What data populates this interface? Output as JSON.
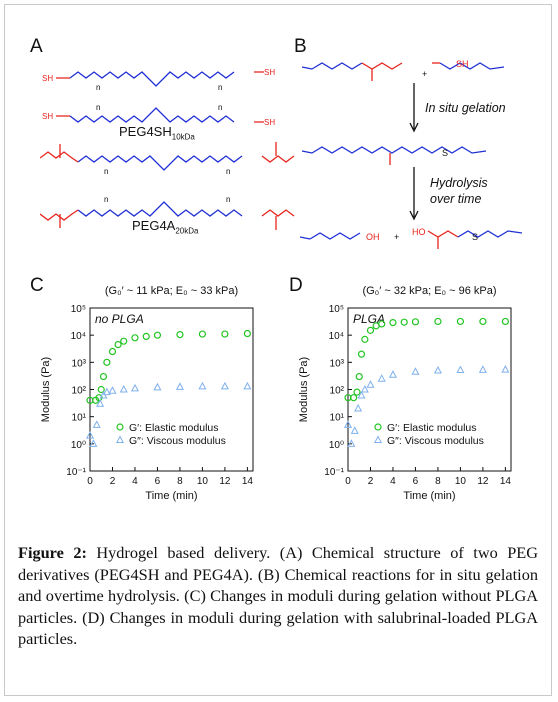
{
  "panels": {
    "a": "A",
    "b": "B",
    "c": "C",
    "d": "D"
  },
  "scheme_a": {
    "sh": "SH",
    "n": "n",
    "peg4sh_main": "PEG4SH",
    "peg4sh_sub": "10kDa",
    "peg4a_main": "PEG4A",
    "peg4a_sub": "20kDa"
  },
  "scheme_b": {
    "plus": "+",
    "step1": "In situ gelation",
    "step2_line1": "Hydrolysis",
    "step2_line2": "over time",
    "oh": "OH",
    "ho": "HO",
    "s": "S"
  },
  "colors": {
    "blue_structure": "#1f2fd6",
    "red_structure": "#e8231d",
    "elastic": "#22c422",
    "viscous": "#7fb0ee"
  },
  "chart_data": [
    {
      "type": "scatter",
      "panel": "C",
      "header": "(G₀′ ~ 11 kPa; E₀ ~ 33 kPa)",
      "inset_label": "no PLGA",
      "xlabel": "Time (min)",
      "ylabel": "Modulus (Pa)",
      "xlim": [
        0,
        14.5
      ],
      "xticks": [
        "0",
        "2",
        "4",
        "6",
        "8",
        "10",
        "12",
        "14"
      ],
      "ylim_log10": [
        -1,
        5
      ],
      "yscale": "log",
      "yticks": [
        "10⁻¹",
        "10⁰",
        "10¹",
        "10²",
        "10³",
        "10⁴",
        "10⁵"
      ],
      "legend_position": "bottom-right",
      "series": [
        {
          "name": "G′: Elastic modulus",
          "marker": "circle",
          "color": "#22c422",
          "x": [
            0,
            0.5,
            0.8,
            1.0,
            1.2,
            1.5,
            2.0,
            2.5,
            3.0,
            4.0,
            5.0,
            6.0,
            8.0,
            10.0,
            12.0,
            14.0
          ],
          "y": [
            40,
            40,
            50,
            100,
            300,
            1000,
            2500,
            4500,
            6000,
            8000,
            9000,
            10000,
            10500,
            11000,
            11000,
            11500
          ]
        },
        {
          "name": "G″: Viscous modulus",
          "marker": "triangle",
          "color": "#7fb0ee",
          "x": [
            0,
            0.3,
            0.6,
            0.9,
            1.2,
            1.5,
            2.0,
            3.0,
            4.0,
            6.0,
            8.0,
            10.0,
            12.0,
            14.0
          ],
          "y": [
            2,
            1,
            5,
            30,
            60,
            80,
            90,
            100,
            110,
            120,
            125,
            130,
            130,
            130
          ]
        }
      ]
    },
    {
      "type": "scatter",
      "panel": "D",
      "header": "(G₀′ ~ 32 kPa; E₀ ~ 96 kPa)",
      "inset_label": "PLGA",
      "xlabel": "Time (min)",
      "ylabel": "Modulus (Pa)",
      "xlim": [
        0,
        14.5
      ],
      "xticks": [
        "0",
        "2",
        "4",
        "6",
        "8",
        "10",
        "12",
        "14"
      ],
      "ylim_log10": [
        -1,
        5
      ],
      "yscale": "log",
      "yticks": [
        "10⁻¹",
        "10⁰",
        "10¹",
        "10²",
        "10³",
        "10⁴",
        "10⁵"
      ],
      "legend_position": "bottom-right",
      "series": [
        {
          "name": "G′: Elastic modulus",
          "marker": "circle",
          "color": "#22c422",
          "x": [
            0,
            0.5,
            0.8,
            1.0,
            1.2,
            1.5,
            2.0,
            2.5,
            3.0,
            4.0,
            5.0,
            6.0,
            8.0,
            10.0,
            12.0,
            14.0
          ],
          "y": [
            50,
            50,
            80,
            300,
            2000,
            7000,
            15000,
            22000,
            26000,
            29000,
            30000,
            31000,
            32000,
            32000,
            32000,
            32000
          ]
        },
        {
          "name": "G″: Viscous modulus",
          "marker": "triangle",
          "color": "#7fb0ee",
          "x": [
            0,
            0.3,
            0.6,
            0.9,
            1.2,
            1.5,
            2.0,
            3.0,
            4.0,
            6.0,
            8.0,
            10.0,
            12.0,
            14.0
          ],
          "y": [
            5,
            1,
            3,
            20,
            60,
            100,
            150,
            250,
            350,
            450,
            500,
            520,
            530,
            540
          ]
        }
      ]
    }
  ],
  "caption": {
    "label": "Figure 2:",
    "text": " Hydrogel based delivery. (A) Chemical structure of two PEG derivatives (PEG4SH and PEG4A). (B) Chemical reactions for in situ gelation and overtime hydrolysis. (C) Changes in moduli during gelation without PLGA particles. (D) Changes in moduli during gelation with salubrinal-loaded PLGA particles."
  }
}
